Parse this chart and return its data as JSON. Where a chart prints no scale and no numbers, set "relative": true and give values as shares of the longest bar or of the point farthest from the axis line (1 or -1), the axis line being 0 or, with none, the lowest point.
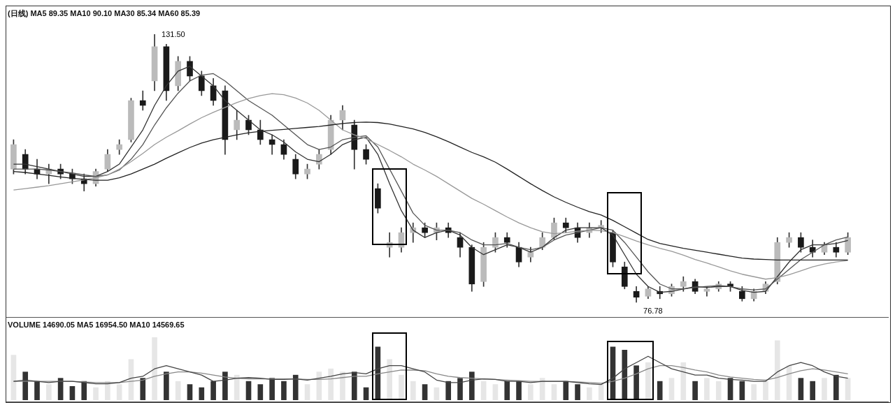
{
  "chart_data": [
    {
      "type": "candlestick",
      "title": "(日线) MA5 89.35 MA10 90.10 MA30 85.34 MA60 85.39",
      "categories": [
        null,
        null,
        null,
        null,
        null,
        null,
        null,
        null,
        null,
        null,
        null,
        null,
        null,
        null,
        null,
        null,
        null,
        null,
        null,
        null,
        null,
        null,
        null,
        null,
        null,
        null,
        null,
        null,
        null,
        null,
        null,
        null,
        null,
        null,
        null,
        null,
        null,
        null,
        null,
        null,
        null,
        null,
        null,
        null,
        null,
        null,
        null,
        null,
        null,
        null,
        null,
        null,
        null,
        null,
        null,
        null,
        null,
        null,
        null,
        null,
        null,
        null,
        null,
        null,
        null,
        null,
        null,
        null,
        null,
        null,
        null,
        null
      ],
      "ohlc": [
        [
          104,
          110,
          103,
          109
        ],
        [
          107,
          108,
          103,
          104
        ],
        [
          104,
          106,
          102,
          103
        ],
        [
          103,
          105,
          101,
          104
        ],
        [
          104,
          105,
          102,
          103
        ],
        [
          103,
          104,
          101,
          102
        ],
        [
          102,
          103,
          99.5,
          101
        ],
        [
          101,
          104,
          100.5,
          103.5
        ],
        [
          104,
          108,
          103.5,
          107
        ],
        [
          108,
          110,
          107,
          109
        ],
        [
          110,
          118.5,
          109.5,
          118
        ],
        [
          118,
          120,
          116,
          117
        ],
        [
          122,
          131.5,
          120,
          129
        ],
        [
          129,
          129.5,
          118,
          120
        ],
        [
          121,
          127,
          120,
          126
        ],
        [
          126,
          127,
          122,
          123
        ],
        [
          123,
          124,
          119,
          120
        ],
        [
          121,
          122.5,
          117,
          118
        ],
        [
          120,
          121,
          107,
          110
        ],
        [
          112,
          116,
          110,
          114
        ],
        [
          114,
          115,
          111,
          112
        ],
        [
          112,
          114,
          109,
          110
        ],
        [
          110,
          111,
          107,
          109
        ],
        [
          109,
          110,
          106,
          107
        ],
        [
          106,
          107,
          102,
          103
        ],
        [
          103,
          105,
          102,
          104
        ],
        [
          105,
          108,
          104,
          107
        ],
        [
          108,
          115,
          107,
          114
        ],
        [
          114,
          117,
          112,
          116
        ],
        [
          113,
          114,
          104,
          108
        ],
        [
          108,
          109,
          105,
          106
        ],
        [
          100,
          101,
          95,
          96
        ],
        [
          88,
          91,
          86,
          89
        ],
        [
          88,
          92,
          87,
          91
        ],
        [
          91,
          93,
          89,
          92
        ],
        [
          92,
          93,
          90,
          91
        ],
        [
          91,
          93,
          89.5,
          92
        ],
        [
          92,
          93,
          90,
          91
        ],
        [
          90,
          91,
          86,
          88
        ],
        [
          88,
          88.5,
          79,
          80.5
        ],
        [
          81,
          89,
          80,
          88
        ],
        [
          88,
          91,
          87,
          90
        ],
        [
          90,
          91,
          88,
          89
        ],
        [
          88,
          89,
          84,
          85
        ],
        [
          86,
          88,
          85,
          87
        ],
        [
          88,
          91,
          87.5,
          90
        ],
        [
          90,
          94,
          89.5,
          93
        ],
        [
          93,
          94,
          91,
          92
        ],
        [
          92,
          93,
          89,
          90
        ],
        [
          91,
          93,
          90,
          92
        ],
        [
          92,
          93.5,
          91,
          92.5
        ],
        [
          91,
          91.5,
          84,
          85
        ],
        [
          84,
          85,
          79.5,
          80
        ],
        [
          79,
          80,
          76.78,
          77.8
        ],
        [
          78,
          80,
          77.5,
          79.5
        ],
        [
          79,
          80,
          77.5,
          78.5
        ],
        [
          78.5,
          80.5,
          78,
          80
        ],
        [
          80,
          82,
          79,
          81
        ],
        [
          81,
          81.5,
          78.5,
          79
        ],
        [
          79,
          80,
          78,
          79.5
        ],
        [
          79.5,
          81,
          79,
          80.5
        ],
        [
          80.5,
          81,
          79,
          80
        ],
        [
          79,
          80,
          77,
          77.5
        ],
        [
          77.5,
          79.5,
          77,
          79
        ],
        [
          79,
          81,
          78.5,
          80.5
        ],
        [
          81,
          90,
          80.5,
          89
        ],
        [
          89,
          91,
          88,
          90
        ],
        [
          90,
          91,
          87,
          88
        ],
        [
          88,
          89.5,
          86,
          87
        ],
        [
          87,
          89,
          86.5,
          88.5
        ],
        [
          88,
          89,
          86,
          87
        ],
        [
          87,
          91,
          86.5,
          90
        ]
      ],
      "colors": [
        "#bbbbbb",
        "#1a1a1a",
        "#1a1a1a",
        "#bbbbbb",
        "#1a1a1a",
        "#1a1a1a",
        "#1a1a1a",
        "#bbbbbb",
        "#bbbbbb",
        "#bbbbbb",
        "#bbbbbb",
        "#1a1a1a",
        "#bbbbbb",
        "#1a1a1a",
        "#bbbbbb",
        "#1a1a1a",
        "#1a1a1a",
        "#1a1a1a",
        "#1a1a1a",
        "#bbbbbb",
        "#1a1a1a",
        "#1a1a1a",
        "#1a1a1a",
        "#1a1a1a",
        "#1a1a1a",
        "#bbbbbb",
        "#bbbbbb",
        "#bbbbbb",
        "#bbbbbb",
        "#1a1a1a",
        "#1a1a1a",
        "#1a1a1a",
        "#bbbbbb",
        "#bbbbbb",
        "#bbbbbb",
        "#1a1a1a",
        "#bbbbbb",
        "#1a1a1a",
        "#1a1a1a",
        "#1a1a1a",
        "#bbbbbb",
        "#bbbbbb",
        "#1a1a1a",
        "#1a1a1a",
        "#bbbbbb",
        "#bbbbbb",
        "#bbbbbb",
        "#1a1a1a",
        "#1a1a1a",
        "#bbbbbb",
        "#bbbbbb",
        "#1a1a1a",
        "#1a1a1a",
        "#1a1a1a",
        "#bbbbbb",
        "#1a1a1a",
        "#bbbbbb",
        "#bbbbbb",
        "#1a1a1a",
        "#bbbbbb",
        "#bbbbbb",
        "#1a1a1a",
        "#1a1a1a",
        "#bbbbbb",
        "#bbbbbb",
        "#bbbbbb",
        "#bbbbbb",
        "#1a1a1a",
        "#1a1a1a",
        "#bbbbbb",
        "#1a1a1a",
        "#bbbbbb"
      ],
      "series": [
        {
          "type": "line",
          "color": "#222222",
          "values": [
            103.5,
            103.3,
            103,
            102.7,
            102.4,
            102.1,
            101.9,
            101.7,
            101.7,
            102.2,
            103,
            104,
            105,
            106.2,
            107.3,
            108.4,
            109.3,
            110,
            110.5,
            111,
            111.4,
            111.7,
            111.9,
            112.1,
            112.3,
            112.5,
            112.7,
            113,
            113.3,
            113.5,
            113.6,
            113.5,
            113.2,
            112.7,
            112.2,
            111.5,
            110.6,
            109.6,
            108.5,
            107.4,
            106.5,
            105.4,
            104,
            102.5,
            101,
            99.6,
            98.3,
            97.2,
            96.2,
            95.3,
            94.6,
            93.5,
            92.2,
            90.9,
            89.6,
            88.8,
            88.3,
            87.8,
            87.4,
            87,
            86.6,
            86.2,
            85.8,
            85.6,
            85.5,
            85.4,
            85.4,
            85.4,
            85.4,
            85.4,
            85.4,
            85.4
          ]
        },
        {
          "type": "line",
          "color": "#999999",
          "values": [
            99.7,
            100,
            100.3,
            100.6,
            101,
            101.4,
            101.8,
            102.2,
            102.8,
            104,
            105.5,
            107.2,
            109,
            110.5,
            111.8,
            113.2,
            114.5,
            115.6,
            116.6,
            117.6,
            118.4,
            119,
            119.4,
            119.2,
            118.5,
            117.5,
            116,
            114,
            112,
            111,
            110.2,
            109,
            107.8,
            106.5,
            105,
            103.8,
            102.5,
            101,
            99.5,
            98,
            96.8,
            95.5,
            94.2,
            93,
            92,
            91.2,
            90.8,
            91,
            91.3,
            91.5,
            91.4,
            91,
            90.2,
            89.3,
            88.5,
            87.8,
            87.2,
            86.4,
            85.5,
            84.8,
            84,
            83.2,
            82.5,
            82,
            81.5,
            81.8,
            82.4,
            83.2,
            84,
            84.6,
            85,
            85.3
          ]
        },
        {
          "type": "line",
          "color": "#555555",
          "values": [
            104,
            104,
            104,
            103.8,
            103.5,
            103.2,
            102.8,
            102.5,
            102.8,
            103.8,
            106,
            109,
            113,
            116.5,
            119.5,
            122,
            123.2,
            123.5,
            122,
            120,
            118,
            116.5,
            115,
            113,
            111,
            109,
            108,
            108.5,
            110,
            110.5,
            110.8,
            108.5,
            104,
            99.5,
            95,
            92.5,
            91.5,
            91.5,
            91,
            89.5,
            88.5,
            88.5,
            88.8,
            88,
            87.5,
            88,
            89.5,
            90.5,
            91,
            91.5,
            92,
            91.5,
            89,
            86,
            83,
            80.5,
            79.5,
            79.5,
            79.8,
            80,
            80.2,
            80,
            79.5,
            79.3,
            79.5,
            81.5,
            83.5,
            85.5,
            87,
            88.5,
            89.5,
            90.1
          ]
        },
        {
          "type": "line",
          "color": "#333333",
          "values": [
            105,
            105,
            104.5,
            104,
            103.5,
            103,
            102.5,
            102.5,
            103.5,
            105,
            108.5,
            112,
            117,
            121,
            124,
            125,
            123,
            121,
            118,
            116,
            114,
            112,
            111,
            109.5,
            107.5,
            106,
            105.5,
            107,
            109,
            110,
            110.5,
            107,
            101,
            95.5,
            91.5,
            90,
            91,
            91.5,
            90.5,
            88,
            86.5,
            87.5,
            88.5,
            88,
            87,
            88,
            90,
            91.5,
            92,
            92,
            92,
            90.5,
            86.5,
            82.5,
            80,
            78.8,
            79,
            79.5,
            80,
            79.8,
            80,
            80,
            79.2,
            78.8,
            79,
            82,
            85,
            87.5,
            88.5,
            88.5,
            88.8,
            89.4
          ]
        }
      ],
      "annotations": [
        "131.50",
        "76.78"
      ]
    },
    {
      "type": "bar",
      "title": "VOLUME 14690.05 MA5 16954.50 MA10 14569.65",
      "relative": true,
      "categories": [
        null,
        null,
        null,
        null,
        null,
        null,
        null,
        null,
        null,
        null,
        null,
        null,
        null,
        null,
        null,
        null,
        null,
        null,
        null,
        null,
        null,
        null,
        null,
        null,
        null,
        null,
        null,
        null,
        null,
        null,
        null,
        null,
        null,
        null,
        null,
        null,
        null,
        null,
        null,
        null,
        null,
        null,
        null,
        null,
        null,
        null,
        null,
        null,
        null,
        null,
        null,
        null,
        null,
        null,
        null,
        null,
        null,
        null,
        null,
        null,
        null,
        null,
        null,
        null,
        null,
        null,
        null,
        null,
        null,
        null,
        null,
        null
      ],
      "values": [
        0.72,
        0.45,
        0.3,
        0.25,
        0.35,
        0.22,
        0.3,
        0.2,
        0.3,
        0.25,
        0.65,
        0.35,
        1,
        0.45,
        0.3,
        0.25,
        0.2,
        0.3,
        0.45,
        0.4,
        0.3,
        0.25,
        0.35,
        0.3,
        0.4,
        0.25,
        0.45,
        0.5,
        0.45,
        0.45,
        0.2,
        0.85,
        0.65,
        0.4,
        0.3,
        0.25,
        0.2,
        0.3,
        0.35,
        0.45,
        0.3,
        0.25,
        0.3,
        0.3,
        0.25,
        0.35,
        0.25,
        0.3,
        0.25,
        0.2,
        0.25,
        0.85,
        0.8,
        0.55,
        0.6,
        0.3,
        0.35,
        0.6,
        0.3,
        0.35,
        0.3,
        0.35,
        0.3,
        0.25,
        0.3,
        0.95,
        0.55,
        0.35,
        0.3,
        0.35,
        0.4,
        0.35
      ],
      "colors": [
        "#e6e6e6",
        "#333333",
        "#333333",
        "#e6e6e6",
        "#333333",
        "#333333",
        "#333333",
        "#e6e6e6",
        "#e6e6e6",
        "#e6e6e6",
        "#e6e6e6",
        "#333333",
        "#e6e6e6",
        "#333333",
        "#e6e6e6",
        "#333333",
        "#333333",
        "#333333",
        "#333333",
        "#e6e6e6",
        "#333333",
        "#333333",
        "#333333",
        "#333333",
        "#333333",
        "#e6e6e6",
        "#e6e6e6",
        "#e6e6e6",
        "#e6e6e6",
        "#333333",
        "#333333",
        "#333333",
        "#e6e6e6",
        "#e6e6e6",
        "#e6e6e6",
        "#333333",
        "#e6e6e6",
        "#333333",
        "#333333",
        "#333333",
        "#e6e6e6",
        "#e6e6e6",
        "#333333",
        "#333333",
        "#e6e6e6",
        "#e6e6e6",
        "#e6e6e6",
        "#333333",
        "#333333",
        "#e6e6e6",
        "#e6e6e6",
        "#333333",
        "#333333",
        "#333333",
        "#e6e6e6",
        "#333333",
        "#e6e6e6",
        "#e6e6e6",
        "#333333",
        "#e6e6e6",
        "#e6e6e6",
        "#333333",
        "#333333",
        "#e6e6e6",
        "#e6e6e6",
        "#e6e6e6",
        "#e6e6e6",
        "#333333",
        "#333333",
        "#e6e6e6",
        "#333333",
        "#e6e6e6"
      ],
      "series": [
        {
          "type": "line",
          "color": "#444444",
          "values": [
            0.3,
            0.32,
            0.3,
            0.28,
            0.3,
            0.3,
            0.28,
            0.26,
            0.26,
            0.28,
            0.35,
            0.38,
            0.5,
            0.55,
            0.5,
            0.45,
            0.4,
            0.3,
            0.32,
            0.35,
            0.36,
            0.35,
            0.33,
            0.33,
            0.34,
            0.32,
            0.35,
            0.38,
            0.42,
            0.44,
            0.42,
            0.5,
            0.55,
            0.55,
            0.5,
            0.45,
            0.32,
            0.28,
            0.28,
            0.32,
            0.34,
            0.33,
            0.3,
            0.3,
            0.28,
            0.3,
            0.3,
            0.3,
            0.28,
            0.26,
            0.25,
            0.35,
            0.5,
            0.6,
            0.7,
            0.6,
            0.5,
            0.45,
            0.4,
            0.4,
            0.35,
            0.33,
            0.32,
            0.3,
            0.3,
            0.45,
            0.55,
            0.6,
            0.55,
            0.45,
            0.38,
            0.35
          ]
        },
        {
          "type": "line",
          "color": "#888888",
          "values": [
            0.3,
            0.3,
            0.3,
            0.3,
            0.3,
            0.3,
            0.29,
            0.28,
            0.28,
            0.28,
            0.3,
            0.32,
            0.38,
            0.42,
            0.45,
            0.45,
            0.43,
            0.4,
            0.37,
            0.35,
            0.34,
            0.34,
            0.34,
            0.34,
            0.34,
            0.33,
            0.33,
            0.34,
            0.36,
            0.38,
            0.38,
            0.42,
            0.45,
            0.48,
            0.48,
            0.47,
            0.42,
            0.38,
            0.36,
            0.35,
            0.34,
            0.33,
            0.32,
            0.31,
            0.3,
            0.3,
            0.3,
            0.3,
            0.29,
            0.28,
            0.27,
            0.3,
            0.35,
            0.42,
            0.5,
            0.55,
            0.55,
            0.52,
            0.48,
            0.45,
            0.4,
            0.37,
            0.35,
            0.33,
            0.32,
            0.36,
            0.42,
            0.47,
            0.5,
            0.48,
            0.45,
            0.42
          ]
        }
      ]
    }
  ]
}
